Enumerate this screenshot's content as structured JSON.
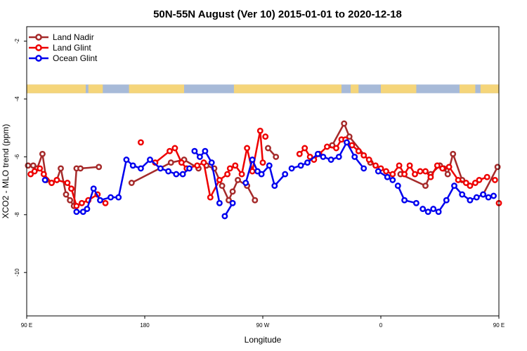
{
  "chart_data": {
    "type": "line",
    "title": "50N-55N August (Ver 10)   2015-01-01 to 2020-12-18",
    "xlabel": "Longitude",
    "ylabel": "XCO2 - MLO trend (ppm)",
    "xlim": [
      0,
      360
    ],
    "ylim": [
      -11.5,
      -1.5
    ],
    "x_tick_values": [
      0,
      90,
      180,
      270,
      360
    ],
    "x_tick_labels": [
      "90 E",
      "180",
      "90 W",
      "0",
      "90 E"
    ],
    "x_tick_label_values": [
      0,
      90,
      180,
      270,
      360
    ],
    "y_ticks": [
      -2,
      -4,
      -6,
      -8,
      -10
    ],
    "y_tick_labels": [
      "-2",
      "-4",
      "-6",
      "-8",
      "-10"
    ],
    "grid": false,
    "legend_position": "top-left",
    "land_band": {
      "y_range": [
        -3.8,
        -3.5
      ],
      "ocean_color": "#a7bad8",
      "land_color": "#f5d57a",
      "land_x_ranges": [
        [
          0,
          45
        ],
        [
          47,
          58
        ],
        [
          78,
          120
        ],
        [
          158,
          240
        ],
        [
          247,
          253
        ],
        [
          270,
          297
        ],
        [
          330,
          342
        ],
        [
          346,
          360
        ]
      ]
    },
    "series": [
      {
        "name": "Land Nadir",
        "color": "#a52a2a",
        "x": [
          1,
          5,
          8,
          12,
          15,
          19,
          23,
          26,
          30,
          33,
          36,
          38,
          41,
          55,
          80,
          110,
          120,
          131,
          137,
          143,
          149,
          154,
          157,
          161,
          168,
          174,
          184,
          190,
          233,
          242,
          246,
          262,
          285,
          304,
          308,
          315,
          318,
          321,
          325,
          332,
          348,
          359
        ],
        "y": [
          -6.3,
          -6.3,
          -6.4,
          -5.9,
          -6.8,
          -6.9,
          -6.8,
          -6.4,
          -7.3,
          -7.5,
          -7.7,
          -6.4,
          -6.4,
          -6.35,
          -6.9,
          -6.2,
          -6.1,
          -6.4,
          -6.3,
          -6.4,
          -7.0,
          -7.5,
          -7.2,
          -6.8,
          -7.0,
          -7.5,
          -5.7,
          -6.0,
          -5.6,
          -4.85,
          -5.3,
          -6.2,
          -6.6,
          -7.0,
          -6.6,
          -6.3,
          -6.4,
          -6.6,
          -5.9,
          -6.8,
          -7.3,
          -6.35
        ],
        "segments": [
          [
            0,
            11
          ],
          [
            12,
            13
          ],
          [
            14,
            17
          ],
          [
            18,
            25
          ],
          [
            26,
            27
          ],
          [
            28,
            31
          ],
          [
            32,
            39
          ],
          [
            40,
            41
          ]
        ]
      },
      {
        "name": "Land Glint",
        "color": "#ee0000",
        "x": [
          3,
          6,
          10,
          13,
          19,
          23,
          31,
          34,
          38,
          42,
          47,
          54,
          60,
          87,
          98,
          109,
          113,
          118,
          122,
          130,
          135,
          140,
          147,
          153,
          155,
          159,
          164,
          168,
          172,
          178,
          180,
          182,
          208,
          212,
          216,
          219,
          223,
          229,
          236,
          240,
          243,
          248,
          253,
          257,
          261,
          266,
          270,
          274,
          279,
          284,
          288,
          292,
          296,
          300,
          304,
          308,
          313,
          317,
          322,
          329,
          335,
          338,
          342,
          345,
          351,
          357,
          360
        ],
        "y": [
          -6.6,
          -6.5,
          -6.4,
          -6.6,
          -6.9,
          -6.8,
          -6.9,
          -7.1,
          -7.7,
          -7.6,
          -7.5,
          -7.3,
          -7.6,
          -5.5,
          -6.2,
          -5.8,
          -5.7,
          -6.2,
          -6.4,
          -6.3,
          -6.2,
          -7.4,
          -6.8,
          -6.6,
          -6.4,
          -6.3,
          -6.6,
          -5.7,
          -6.5,
          -5.1,
          -6.2,
          -5.3,
          -5.9,
          -5.7,
          -6.0,
          -6.1,
          -5.9,
          -5.65,
          -5.7,
          -5.4,
          -5.4,
          -5.6,
          -5.8,
          -5.95,
          -6.1,
          -6.3,
          -6.4,
          -6.5,
          -6.6,
          -6.3,
          -6.6,
          -6.3,
          -6.6,
          -6.5,
          -6.5,
          -6.7,
          -6.3,
          -6.4,
          -6.35,
          -6.8,
          -6.9,
          -7.0,
          -6.9,
          -6.8,
          -6.7,
          -6.8,
          -7.6
        ],
        "segments": [
          [
            0,
            11
          ],
          [
            12,
            12
          ],
          [
            13,
            13
          ],
          [
            14,
            30
          ],
          [
            31,
            31
          ],
          [
            32,
            64
          ],
          [
            65,
            65
          ],
          [
            66,
            66
          ]
        ]
      },
      {
        "name": "Ocean Glint",
        "color": "#0000ee",
        "x": [
          14,
          38,
          43,
          46,
          51,
          56,
          64,
          70,
          76,
          81,
          87,
          94,
          102,
          108,
          114,
          119,
          124,
          128,
          132,
          136,
          141,
          147,
          151,
          157,
          167,
          172,
          176,
          179,
          185,
          189,
          197,
          202,
          209,
          214,
          222,
          226,
          232,
          238,
          244,
          250,
          257,
          268,
          275,
          279,
          283,
          288,
          297,
          302,
          306,
          310,
          314,
          320,
          326,
          332,
          338,
          343,
          348,
          352,
          356
        ],
        "y": [
          -6.8,
          -7.9,
          -7.9,
          -7.8,
          -7.1,
          -7.5,
          -7.4,
          -7.4,
          -6.1,
          -6.3,
          -6.4,
          -6.1,
          -6.4,
          -6.5,
          -6.6,
          -6.6,
          -6.4,
          -5.8,
          -6.0,
          -5.8,
          -6.2,
          -7.6,
          -8.05,
          -7.6,
          -6.9,
          -6.1,
          -6.5,
          -6.6,
          -6.3,
          -7.0,
          -6.6,
          -6.4,
          -6.3,
          -6.2,
          -5.9,
          -6.0,
          -6.1,
          -6.0,
          -5.5,
          -6.0,
          -6.4,
          -6.5,
          -6.7,
          -6.8,
          -7.0,
          -7.5,
          -7.6,
          -7.8,
          -7.9,
          -7.8,
          -7.9,
          -7.5,
          -7.0,
          -7.3,
          -7.5,
          -7.4,
          -7.3,
          -7.4,
          -7.35
        ],
        "segments": [
          [
            0,
            0
          ],
          [
            1,
            16
          ],
          [
            17,
            21
          ],
          [
            22,
            23
          ],
          [
            24,
            30
          ],
          [
            31,
            40
          ],
          [
            41,
            43
          ],
          [
            44,
            46
          ],
          [
            47,
            58
          ]
        ]
      }
    ]
  }
}
